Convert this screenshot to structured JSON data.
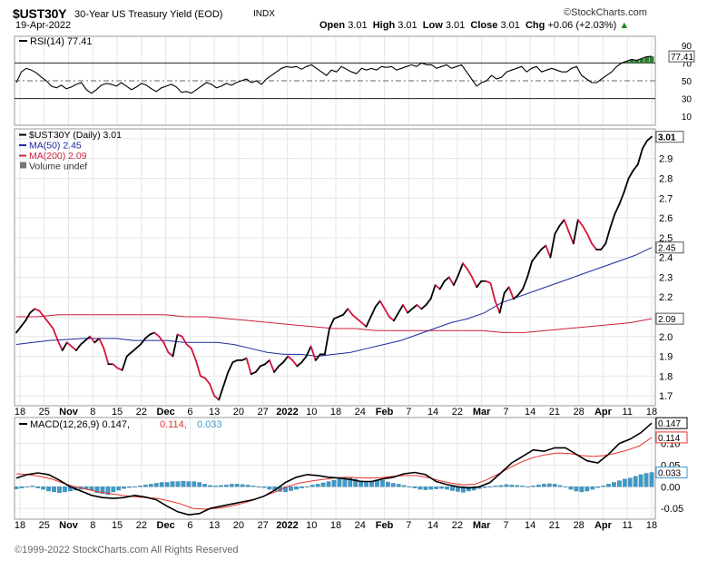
{
  "header": {
    "symbol": "$UST30Y",
    "name": "30-Year US Treasury Yield (EOD)",
    "exchange": "INDX",
    "brand": "©StockCharts.com",
    "date": "19-Apr-2022",
    "open_label": "Open",
    "open": "3.01",
    "high_label": "High",
    "high": "3.01",
    "low_label": "Low",
    "low": "3.01",
    "close_label": "Close",
    "close": "3.01",
    "chg_label": "Chg",
    "chg": "+0.06 (+2.03%)",
    "chg_arrow": "▲"
  },
  "footer": {
    "copyright": "©1999-2022 StockCharts.com All Rights Reserved"
  },
  "colors": {
    "price_up": "#000000",
    "price_down": "#d4143c",
    "ma50": "#1c2a9c",
    "ma200": "#cc1e3c",
    "macd_line": "#000000",
    "macd_signal": "#e8312b",
    "histogram": "#3e9ac8",
    "rsi_line": "#000000",
    "rsi_fill": "#2e7d32",
    "grid": "#e6e6e6"
  },
  "chart_data": [
    {
      "type": "line",
      "panel": "RSI",
      "title": "RSI(14) 77.41",
      "yticks": [
        90,
        70,
        50,
        30,
        10
      ],
      "ylim": [
        0,
        100
      ],
      "reference_lines": [
        70,
        50,
        30
      ],
      "last_label": "77.41",
      "series": [
        {
          "name": "RSI(14)",
          "values": [
            48,
            60,
            64,
            62,
            59,
            54,
            50,
            44,
            42,
            45,
            41,
            43,
            46,
            48,
            40,
            36,
            40,
            45,
            47,
            46,
            44,
            48,
            44,
            40,
            43,
            47,
            45,
            41,
            38,
            42,
            44,
            46,
            43,
            37,
            38,
            36,
            40,
            44,
            48,
            46,
            42,
            44,
            47,
            45,
            48,
            50,
            52,
            48,
            50,
            46,
            52,
            56,
            60,
            64,
            66,
            65,
            66,
            63,
            66,
            68,
            64,
            60,
            56,
            62,
            60,
            66,
            63,
            60,
            58,
            64,
            62,
            64,
            62,
            66,
            65,
            66,
            62,
            64,
            66,
            68,
            66,
            70,
            68,
            68,
            64,
            66,
            68,
            64,
            66,
            68,
            60,
            52,
            44,
            48,
            50,
            56,
            52,
            54,
            60,
            62,
            64,
            66,
            60,
            64,
            66,
            60,
            62,
            64,
            62,
            60,
            60,
            64,
            66,
            56,
            52,
            48,
            48,
            52,
            56,
            60,
            66,
            70,
            72,
            74,
            73,
            75,
            77,
            77.41
          ]
        }
      ]
    },
    {
      "type": "line",
      "panel": "Price",
      "series": [
        {
          "name": "$UST30Y (Daily) 3.01",
          "legend": "$UST30Y (Daily) 3.01",
          "values": [
            2.02,
            2.05,
            2.08,
            2.12,
            2.14,
            2.13,
            2.1,
            2.07,
            2.04,
            1.98,
            1.93,
            1.97,
            1.95,
            1.93,
            1.96,
            1.98,
            2.0,
            1.97,
            1.99,
            1.94,
            1.86,
            1.86,
            1.84,
            1.83,
            1.9,
            1.92,
            1.94,
            1.96,
            1.99,
            2.01,
            2.02,
            2.0,
            1.97,
            1.92,
            1.9,
            2.01,
            2.0,
            1.96,
            1.94,
            1.88,
            1.8,
            1.79,
            1.76,
            1.7,
            1.68,
            1.75,
            1.82,
            1.87,
            1.88,
            1.88,
            1.89,
            1.81,
            1.82,
            1.85,
            1.86,
            1.88,
            1.82,
            1.85,
            1.87,
            1.9,
            1.88,
            1.85,
            1.87,
            1.9,
            1.95,
            1.88,
            1.91,
            1.91,
            2.04,
            2.09,
            2.1,
            2.11,
            2.14,
            2.11,
            2.09,
            2.07,
            2.05,
            2.1,
            2.15,
            2.18,
            2.14,
            2.1,
            2.08,
            2.12,
            2.16,
            2.12,
            2.14,
            2.16,
            2.14,
            2.16,
            2.19,
            2.26,
            2.24,
            2.28,
            2.3,
            2.26,
            2.31,
            2.37,
            2.34,
            2.3,
            2.25,
            2.28,
            2.28,
            2.27,
            2.18,
            2.12,
            2.22,
            2.25,
            2.19,
            2.21,
            2.24,
            2.3,
            2.38,
            2.41,
            2.44,
            2.46,
            2.4,
            2.52,
            2.56,
            2.59,
            2.53,
            2.47,
            2.59,
            2.56,
            2.52,
            2.47,
            2.44,
            2.44,
            2.47,
            2.55,
            2.62,
            2.67,
            2.73,
            2.8,
            2.84,
            2.87,
            2.95,
            2.99,
            3.01
          ]
        },
        {
          "name": "MA(50) 2.45",
          "legend": "MA(50) 2.45",
          "values": [
            1.96,
            1.97,
            1.98,
            1.985,
            1.99,
            1.99,
            1.99,
            1.98,
            1.98,
            1.98,
            1.97,
            1.97,
            1.97,
            1.96,
            1.94,
            1.92,
            1.91,
            1.91,
            1.9,
            1.91,
            1.92,
            1.94,
            1.96,
            1.98,
            2.01,
            2.04,
            2.07,
            2.09,
            2.12,
            2.17,
            2.2,
            2.23,
            2.26,
            2.29,
            2.32,
            2.35,
            2.38,
            2.41,
            2.45
          ]
        },
        {
          "name": "MA(200) 2.09",
          "legend": "MA(200) 2.09",
          "values": [
            2.1,
            2.1,
            2.11,
            2.11,
            2.11,
            2.11,
            2.11,
            2.11,
            2.1,
            2.1,
            2.09,
            2.08,
            2.07,
            2.06,
            2.05,
            2.04,
            2.04,
            2.03,
            2.03,
            2.03,
            2.03,
            2.03,
            2.03,
            2.02,
            2.02,
            2.03,
            2.04,
            2.05,
            2.06,
            2.07,
            2.09
          ]
        },
        {
          "name": "Volume undef",
          "legend": "Volume undef",
          "values": []
        }
      ],
      "yticks": [
        3.0,
        2.9,
        2.8,
        2.7,
        2.6,
        2.5,
        2.4,
        2.3,
        2.2,
        2.1,
        2.0,
        1.9,
        1.8,
        1.7
      ],
      "ylim": [
        1.65,
        3.05
      ],
      "value_labels": [
        {
          "text": "3.01",
          "value": 3.01
        },
        {
          "text": "2.45",
          "value": 2.45
        },
        {
          "text": "2.09",
          "value": 2.09
        }
      ],
      "xtick_labels": [
        "18",
        "25",
        "Nov",
        "8",
        "15",
        "22",
        "Dec",
        "6",
        "13",
        "20",
        "27",
        "2022",
        "10",
        "18",
        "24",
        "Feb",
        "7",
        "14",
        "22",
        "Mar",
        "7",
        "14",
        "21",
        "28",
        "Apr",
        "11",
        "18"
      ],
      "bold_xtick_labels": [
        "Nov",
        "Dec",
        "2022",
        "Feb",
        "Mar",
        "Apr"
      ]
    },
    {
      "type": "line",
      "panel": "MACD",
      "title": "MACD(12,26,9) 0.147, 0.114, 0.033",
      "legend_parts": [
        "MACD(12,26,9) 0.147,",
        "0.114,",
        "0.033"
      ],
      "yticks": [
        0.1,
        0.05,
        0.0,
        -0.05
      ],
      "ytick_labels": [
        "0.10",
        "0.05",
        "0.00",
        "-0.05"
      ],
      "ylim": [
        -0.075,
        0.16
      ],
      "value_labels": [
        {
          "text": "0.147",
          "value": 0.147
        },
        {
          "text": "0.114",
          "value": 0.114
        },
        {
          "text": "0.033",
          "value": 0.033
        }
      ],
      "series": [
        {
          "name": "MACD",
          "values": [
            0.02,
            0.028,
            0.032,
            0.028,
            0.015,
            0.0,
            -0.01,
            -0.02,
            -0.025,
            -0.027,
            -0.025,
            -0.02,
            -0.024,
            -0.03,
            -0.045,
            -0.058,
            -0.065,
            -0.062,
            -0.05,
            -0.045,
            -0.04,
            -0.035,
            -0.03,
            -0.022,
            -0.008,
            0.01,
            0.022,
            0.028,
            0.026,
            0.022,
            0.02,
            0.017,
            0.012,
            0.012,
            0.018,
            0.022,
            0.03,
            0.033,
            0.028,
            0.012,
            0.005,
            0.0,
            -0.003,
            0.0,
            0.01,
            0.032,
            0.055,
            0.07,
            0.085,
            0.082,
            0.09,
            0.09,
            0.075,
            0.06,
            0.055,
            0.075,
            0.1,
            0.11,
            0.125,
            0.147
          ]
        },
        {
          "name": "Signal",
          "values": [
            0.03,
            0.028,
            0.024,
            0.018,
            0.008,
            0.0,
            -0.006,
            -0.012,
            -0.016,
            -0.02,
            -0.023,
            -0.025,
            -0.027,
            -0.033,
            -0.04,
            -0.05,
            -0.052,
            -0.05,
            -0.046,
            -0.04,
            -0.032,
            -0.022,
            -0.012,
            0.0,
            0.008,
            0.013,
            0.017,
            0.02,
            0.022,
            0.021,
            0.02,
            0.021,
            0.024,
            0.026,
            0.026,
            0.021,
            0.014,
            0.008,
            0.004,
            0.006,
            0.016,
            0.03,
            0.045,
            0.058,
            0.068,
            0.074,
            0.078,
            0.077,
            0.072,
            0.07,
            0.072,
            0.078,
            0.085,
            0.095,
            0.114
          ]
        },
        {
          "name": "Histogram",
          "values": [
            -0.005,
            -0.003,
            0.0,
            0.002,
            -0.003,
            -0.006,
            -0.01,
            -0.012,
            -0.014,
            -0.012,
            -0.01,
            -0.008,
            -0.006,
            -0.006,
            -0.008,
            -0.014,
            -0.016,
            -0.018,
            -0.012,
            -0.008,
            -0.004,
            -0.002,
            0.0,
            0.002,
            0.004,
            0.006,
            0.008,
            0.01,
            0.01,
            0.012,
            0.012,
            0.013,
            0.012,
            0.012,
            0.01,
            0.006,
            0.003,
            0.002,
            0.003,
            0.004,
            0.006,
            0.006,
            0.005,
            0.004,
            0.002,
            0.0,
            -0.002,
            -0.006,
            -0.009,
            -0.011,
            -0.012,
            -0.009,
            -0.006,
            -0.003,
            0.0,
            0.004,
            0.006,
            0.009,
            0.012,
            0.015,
            0.02,
            0.022,
            0.02,
            0.018,
            0.014,
            0.01,
            0.012,
            0.016,
            0.015,
            0.011,
            0.008,
            0.006,
            0.003,
            0.0,
            -0.003,
            -0.006,
            -0.007,
            -0.006,
            -0.005,
            -0.004,
            -0.006,
            -0.009,
            -0.011,
            -0.013,
            -0.01,
            -0.008,
            -0.004,
            -0.002,
            0.0,
            0.002,
            0.003,
            0.005,
            0.004,
            0.003,
            0.002,
            0.0,
            0.002,
            0.004,
            0.006,
            0.007,
            0.006,
            0.003,
            -0.001,
            -0.006,
            -0.01,
            -0.012,
            -0.01,
            -0.006,
            -0.002,
            0.002,
            0.006,
            0.01,
            0.014,
            0.018,
            0.02,
            0.024,
            0.028,
            0.031,
            0.033
          ]
        }
      ]
    }
  ]
}
